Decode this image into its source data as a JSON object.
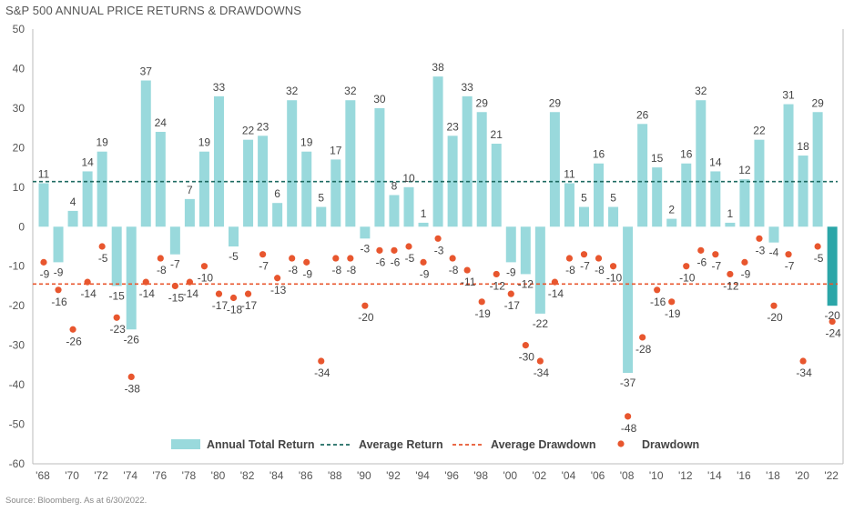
{
  "title": "S&P 500 ANNUAL PRICE RETURNS & DRAWDOWNS",
  "source": "Source: Bloomberg. As at 6/30/2022.",
  "colors": {
    "bar": "#99d9dc",
    "bar_last": "#2ba6a8",
    "dot": "#e8562e",
    "avg_return_line": "#1e6b62",
    "avg_drawdown_line": "#e8562e",
    "axis": "#bbbbbb"
  },
  "chart_data": {
    "type": "bar",
    "title": "S&P 500 ANNUAL PRICE RETURNS & DRAWDOWNS",
    "ylim": [
      -60,
      50
    ],
    "yticks": [
      50,
      40,
      30,
      20,
      10,
      0,
      -10,
      -20,
      -30,
      -40,
      -50,
      -60
    ],
    "xtick_labels": [
      "'68",
      "'70",
      "'72",
      "'74",
      "'76",
      "'78",
      "'80",
      "'82",
      "'84",
      "'86",
      "'88",
      "'90",
      "'92",
      "'94",
      "'96",
      "'98",
      "'00",
      "'02",
      "'04",
      "'06",
      "'08",
      "'10",
      "'12",
      "'14",
      "'16",
      "'18",
      "'20",
      "'22"
    ],
    "years": [
      1968,
      1969,
      1970,
      1971,
      1972,
      1973,
      1974,
      1975,
      1976,
      1977,
      1978,
      1979,
      1980,
      1981,
      1982,
      1983,
      1984,
      1985,
      1986,
      1987,
      1988,
      1989,
      1990,
      1991,
      1992,
      1993,
      1994,
      1995,
      1996,
      1997,
      1998,
      1999,
      2000,
      2001,
      2002,
      2003,
      2004,
      2005,
      2006,
      2007,
      2008,
      2009,
      2010,
      2011,
      2012,
      2013,
      2014,
      2015,
      2016,
      2017,
      2018,
      2019,
      2020,
      2021,
      2022
    ],
    "series": [
      {
        "name": "Annual Total Return",
        "kind": "bar",
        "values": [
          11,
          -9,
          4,
          14,
          19,
          -15,
          -26,
          37,
          24,
          -7,
          7,
          19,
          33,
          -5,
          22,
          23,
          6,
          32,
          19,
          5,
          17,
          32,
          -3,
          30,
          8,
          10,
          1,
          38,
          23,
          33,
          29,
          21,
          -9,
          -12,
          -22,
          29,
          11,
          5,
          16,
          5,
          -37,
          26,
          15,
          2,
          16,
          32,
          14,
          1,
          12,
          22,
          -4,
          31,
          18,
          29,
          -20
        ],
        "labels": [
          "11",
          "-9",
          "4",
          "14",
          "19",
          "-15",
          "-26",
          "37",
          "24",
          "-7",
          "7",
          "19",
          "33",
          "-5",
          "22",
          "23",
          "6",
          "32",
          "19",
          "5",
          "17",
          "32",
          "-3",
          "30",
          "8",
          "10",
          "1",
          "38",
          "23",
          "33",
          "29",
          "21",
          "-9",
          "-12",
          "-22",
          "29",
          "11",
          "5",
          "16",
          "5",
          "-37",
          "26",
          "15",
          "2",
          "16",
          "32",
          "14",
          "1",
          "12",
          "22",
          "-4",
          "31",
          "18",
          "29",
          "-20"
        ]
      },
      {
        "name": "Drawdown",
        "kind": "dot",
        "values": [
          -9,
          -16,
          -26,
          -14,
          -5,
          -23,
          -38,
          -14,
          -8,
          -15,
          -14,
          -10,
          -17,
          -18,
          -17,
          -7,
          -13,
          -8,
          -9,
          -34,
          -8,
          -8,
          -20,
          -6,
          -6,
          -5,
          -9,
          -3,
          -8,
          -11,
          -19,
          -12,
          -17,
          -30,
          -34,
          -14,
          -8,
          -7,
          -8,
          -10,
          -48,
          -28,
          -16,
          -19,
          -10,
          -6,
          -7,
          -12,
          -9,
          -3,
          -20,
          -7,
          -34,
          -5,
          -24
        ],
        "labels": [
          "-9",
          "-16",
          "-26",
          "-14",
          "-5",
          "-23",
          "-38",
          "-14",
          "-8",
          "-15",
          "-14",
          "-10",
          "-17",
          "-18",
          "-17",
          "-7",
          "-13",
          "-8",
          "-9",
          "-34",
          "-8",
          "-8",
          "-20",
          "-6",
          "-6",
          "-5",
          "-9",
          "-3",
          "-8",
          "-11",
          "-19",
          "-12",
          "-17",
          "-30",
          "-34",
          "-14",
          "-8",
          "-7",
          "-8",
          "-10",
          "-48",
          "-28",
          "-16",
          "-19",
          "-10",
          "-6",
          "-7",
          "-12",
          "-9",
          "-3",
          "-20",
          "-7",
          "-34",
          "-5",
          "-24"
        ]
      }
    ],
    "average_return": 11.4,
    "average_drawdown": -14.5,
    "legend": [
      {
        "name": "Annual Total Return",
        "symbol": "bar"
      },
      {
        "name": "Average Return",
        "symbol": "dashed-dark"
      },
      {
        "name": "Average Drawdown",
        "symbol": "dashed-orange"
      },
      {
        "name": "Drawdown",
        "symbol": "dot"
      }
    ],
    "legend_placement": "bottom-center",
    "grid": false
  }
}
